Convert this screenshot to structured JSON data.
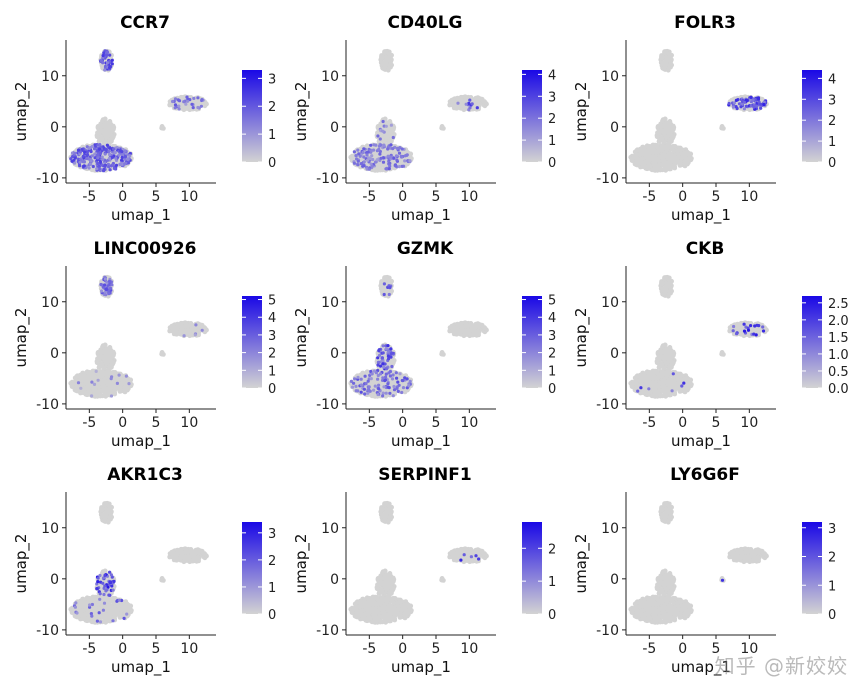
{
  "chart_data": {
    "type": "scatter",
    "xlabel": "umap_1",
    "ylabel": "umap_2",
    "xlim": [
      -8.5,
      14
    ],
    "ylim": [
      -11,
      17
    ],
    "xticks": [
      -5,
      0,
      5,
      10
    ],
    "xtick_labels": [
      "-5",
      "0",
      "5",
      "10"
    ],
    "yticks": [
      -10,
      0,
      10
    ],
    "ytick_labels": [
      "-10",
      "0",
      "10"
    ],
    "colors": {
      "low": "#d3d3d3",
      "high": "#1a08e6",
      "base_points": "#d3d3d3"
    },
    "clusters": [
      {
        "name": "top_island",
        "cx": -2.4,
        "cy": 13.0,
        "rx": 0.9,
        "ry": 2.0
      },
      {
        "name": "main_body",
        "cx": -3.2,
        "cy": -6.0,
        "rx": 4.6,
        "ry": 2.6
      },
      {
        "name": "stem",
        "cx": -2.6,
        "cy": -1.0,
        "rx": 1.4,
        "ry": 2.6
      },
      {
        "name": "right_island",
        "cx": 9.8,
        "cy": 4.6,
        "rx": 3.0,
        "ry": 1.3
      },
      {
        "name": "small_dot",
        "cx": 6.0,
        "cy": -0.1,
        "rx": 0.3,
        "ry": 0.3
      }
    ],
    "panels": [
      {
        "gene": "CCR7",
        "legend_ticks": [
          "3",
          "2",
          "1",
          "0"
        ],
        "max": 3.3,
        "expr": [
          {
            "region": "main_body",
            "density": 0.55,
            "level": 0.55
          },
          {
            "region": "top_island",
            "density": 0.6,
            "level": 0.6
          },
          {
            "region": "right_island",
            "density": 0.18,
            "level": 0.45
          }
        ]
      },
      {
        "gene": "CD40LG",
        "legend_ticks": [
          "4",
          "3",
          "2",
          "1",
          "0"
        ],
        "max": 4.2,
        "expr": [
          {
            "region": "main_body",
            "density": 0.3,
            "level": 0.45
          },
          {
            "region": "stem",
            "density": 0.1,
            "level": 0.4
          },
          {
            "region": "right_island",
            "density": 0.06,
            "level": 0.6
          }
        ]
      },
      {
        "gene": "FOLR3",
        "legend_ticks": [
          "4",
          "3",
          "2",
          "1",
          "0"
        ],
        "max": 4.4,
        "expr": [
          {
            "region": "right_island",
            "density": 0.5,
            "level": 0.65
          }
        ]
      },
      {
        "gene": "LINC00926",
        "legend_ticks": [
          "5",
          "4",
          "3",
          "2",
          "1",
          "0"
        ],
        "max": 5.2,
        "expr": [
          {
            "region": "top_island",
            "density": 0.55,
            "level": 0.5
          },
          {
            "region": "main_body",
            "density": 0.03,
            "level": 0.3
          },
          {
            "region": "right_island",
            "density": 0.03,
            "level": 0.4
          }
        ]
      },
      {
        "gene": "GZMK",
        "legend_ticks": [
          "5",
          "4",
          "3",
          "2",
          "1",
          "0"
        ],
        "max": 5.2,
        "expr": [
          {
            "region": "main_body",
            "density": 0.22,
            "level": 0.5
          },
          {
            "region": "stem",
            "density": 0.45,
            "level": 0.6
          },
          {
            "region": "top_island",
            "density": 0.1,
            "level": 0.5
          }
        ]
      },
      {
        "gene": "CKB",
        "legend_ticks": [
          "2.5",
          "2.0",
          "1.5",
          "1.0",
          "0.5",
          "0.0"
        ],
        "max": 2.7,
        "expr": [
          {
            "region": "right_island",
            "density": 0.12,
            "level": 0.7
          },
          {
            "region": "main_body",
            "density": 0.015,
            "level": 0.7
          }
        ]
      },
      {
        "gene": "AKR1C3",
        "legend_ticks": [
          "3",
          "2",
          "1",
          "0"
        ],
        "max": 3.4,
        "expr": [
          {
            "region": "stem",
            "density": 0.4,
            "level": 0.7
          },
          {
            "region": "main_body",
            "density": 0.05,
            "level": 0.5
          }
        ]
      },
      {
        "gene": "SERPINF1",
        "legend_ticks": [
          "2",
          "1",
          "0"
        ],
        "max": 2.8,
        "expr": [
          {
            "region": "right_island",
            "density": 0.03,
            "level": 0.8
          }
        ]
      },
      {
        "gene": "LY6G6F",
        "legend_ticks": [
          "3",
          "2",
          "1",
          "0"
        ],
        "max": 3.2,
        "expr": [
          {
            "region": "small_dot",
            "density": 0.4,
            "level": 0.6
          }
        ]
      }
    ]
  },
  "watermark": "知乎 @新姣姣"
}
